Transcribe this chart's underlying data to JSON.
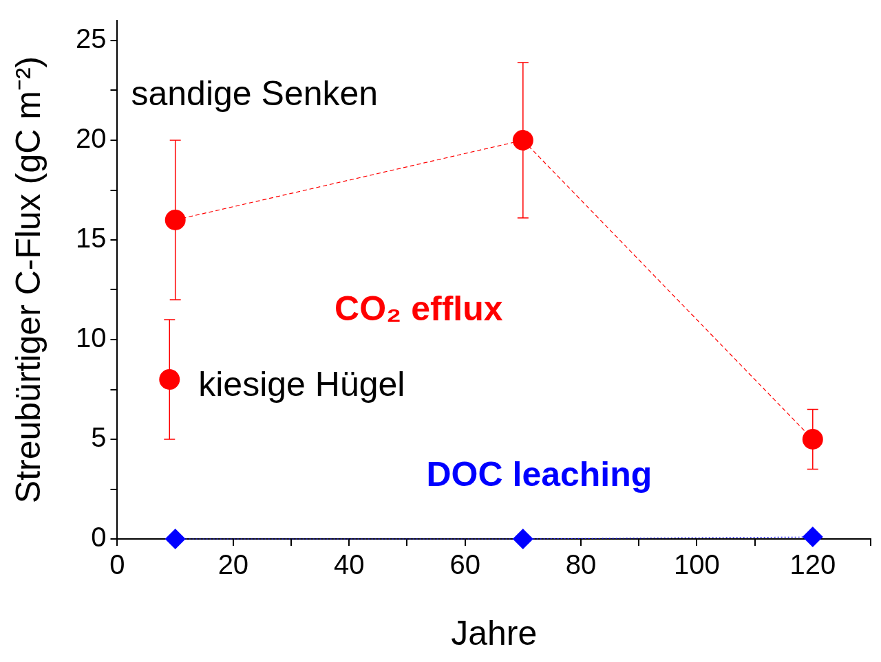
{
  "chart_data": {
    "type": "line",
    "xlabel": "Jahre",
    "ylabel": "Streubürtiger C-Flux (gC m⁻²)",
    "xlim": [
      0,
      130
    ],
    "xticks": [
      0,
      {
        "value": 10,
        "label": null
      },
      20,
      {
        "value": 30,
        "label": null
      },
      40,
      {
        "value": 50,
        "label": null
      },
      60,
      {
        "value": 70,
        "label": null
      },
      80,
      {
        "value": 90,
        "label": null
      },
      100,
      {
        "value": 110,
        "label": null
      },
      120,
      {
        "value": 130,
        "label": null
      }
    ],
    "ylim": [
      0,
      26
    ],
    "yticks": [
      0,
      {
        "value": 2.5,
        "label": null
      },
      5,
      {
        "value": 7.5,
        "label": null
      },
      10,
      {
        "value": 12.5,
        "label": null
      },
      15,
      {
        "value": 17.5,
        "label": null
      },
      20,
      {
        "value": 22.5,
        "label": null
      },
      25
    ],
    "grid": false,
    "legend": false,
    "series": [
      {
        "name": "CO₂ efflux",
        "color": "#ff0000",
        "marker": "circle",
        "line_style": "dashed",
        "x": [
          10,
          70,
          120
        ],
        "values": [
          16,
          20,
          5
        ],
        "errors": [
          [
            12,
            20
          ],
          [
            16.1,
            23.9
          ],
          [
            3.5,
            6.5
          ]
        ]
      },
      {
        "type": "scatter",
        "color": "#ff0000",
        "marker": "circle",
        "x": [
          9
        ],
        "values": [
          8
        ],
        "errors": [
          [
            5,
            11
          ]
        ]
      },
      {
        "name": "DOC leaching",
        "color": "#0000ff",
        "marker": "diamond",
        "line_style": "dotted",
        "x": [
          10,
          70,
          120
        ],
        "values": [
          0,
          0,
          0.1
        ]
      }
    ],
    "annotations": [
      "sandige Senken",
      {
        "text": "kiesige Hügel",
        "x": 9,
        "y": 8
      }
    ]
  }
}
